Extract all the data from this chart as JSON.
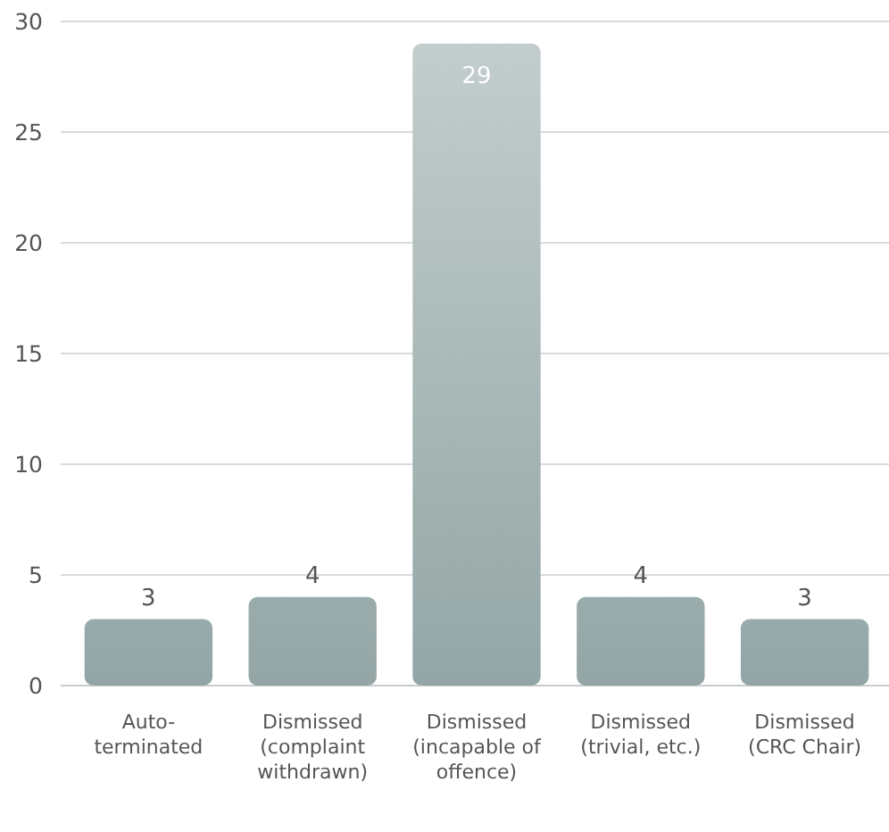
{
  "chart_data": {
    "type": "bar",
    "categories": [
      "Auto-\nterminated",
      "Dismissed\n(complaint\nwithdrawn)",
      "Dismissed\n(incapable of\noffence)",
      "Dismissed\n(trivial, etc.)",
      "Dismissed\n(CRC Chair)"
    ],
    "values": [
      3,
      4,
      29,
      4,
      3
    ],
    "color": "#93a6a5",
    "ylim": [
      0,
      30
    ],
    "yticks": [
      0,
      5,
      10,
      15,
      20,
      25,
      30
    ],
    "grid": "y",
    "data_labels": true
  }
}
